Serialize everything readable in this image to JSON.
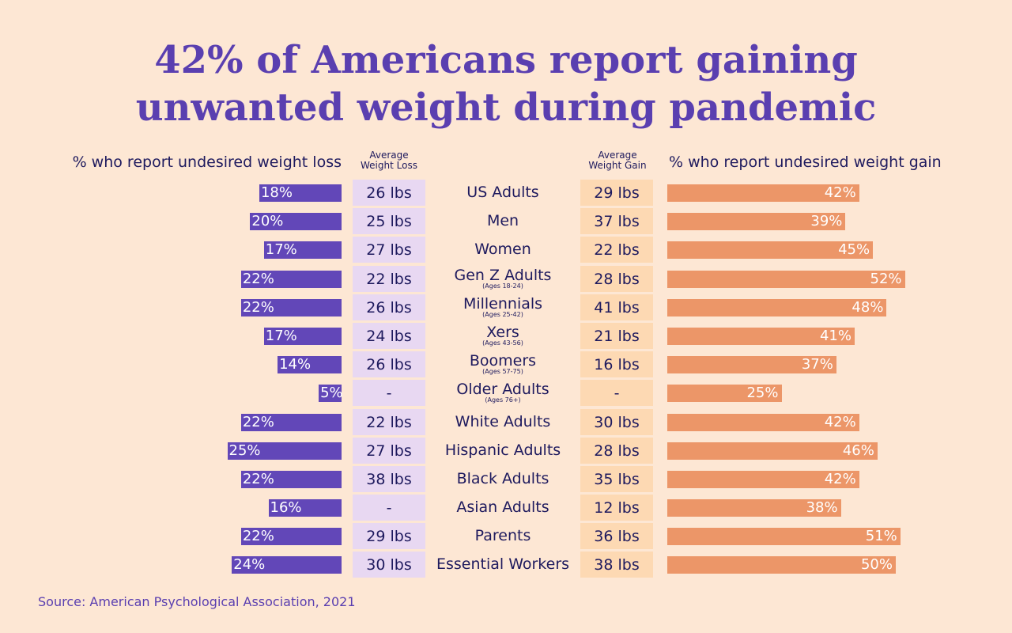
{
  "title_lines": [
    "42% of Americans report gaining",
    "unwanted weight during pandemic"
  ],
  "headers": {
    "loss_pct": "% who report undesired weight loss",
    "avg_loss_line1": "Average",
    "avg_loss_line2": "Weight Loss",
    "avg_gain_line1": "Average",
    "avg_gain_line2": "Weight Gain",
    "gain_pct": "% who report undesired weight gain"
  },
  "source": "Source: American Psychological Association, 2021",
  "colors": {
    "background": "#fde7d4",
    "loss_bar": "#6247b8",
    "gain_bar": "#ec9668",
    "loss_cell": "#e8d8f2",
    "gain_cell": "#fdd9b3",
    "title": "#5a3fb0"
  },
  "chart_data": {
    "type": "bar",
    "title": "42% of Americans report gaining unwanted weight during pandemic",
    "categories": [
      "US Adults",
      "Men",
      "Women",
      "Gen Z Adults",
      "Millennials",
      "Xers",
      "Boomers",
      "Older Adults",
      "White Adults",
      "Hispanic Adults",
      "Black Adults",
      "Asian Adults",
      "Parents",
      "Essential Workers"
    ],
    "category_notes": [
      "",
      "",
      "",
      "(Ages 18-24)",
      "(Ages 25-42)",
      "(Ages 43-56)",
      "(Ages 57-75)",
      "(Ages 76+)",
      "",
      "",
      "",
      "",
      "",
      ""
    ],
    "series": [
      {
        "name": "% who report undesired weight loss",
        "values": [
          18,
          20,
          17,
          22,
          22,
          17,
          14,
          5,
          22,
          25,
          22,
          16,
          22,
          24
        ],
        "labels": [
          "18%",
          "20%",
          "17%",
          "22%",
          "22%",
          "17%",
          "14%",
          "5%",
          "22%",
          "25%",
          "22%",
          "16%",
          "22%",
          "24%"
        ]
      },
      {
        "name": "% who report undesired weight gain",
        "values": [
          42,
          39,
          45,
          52,
          48,
          41,
          37,
          25,
          42,
          46,
          42,
          38,
          51,
          50
        ],
        "labels": [
          "42%",
          "39%",
          "45%",
          "52%",
          "48%",
          "41%",
          "37%",
          "25%",
          "42%",
          "46%",
          "42%",
          "38%",
          "51%",
          "50%"
        ]
      }
    ],
    "avg_weight_loss": [
      "26 lbs",
      "25 lbs",
      "27 lbs",
      "22 lbs",
      "26 lbs",
      "24 lbs",
      "26 lbs",
      "-",
      "22 lbs",
      "27 lbs",
      "38 lbs",
      "-",
      "29 lbs",
      "30 lbs"
    ],
    "avg_weight_gain": [
      "29 lbs",
      "37 lbs",
      "22 lbs",
      "28 lbs",
      "41 lbs",
      "21 lbs",
      "16 lbs",
      "-",
      "30 lbs",
      "28 lbs",
      "35 lbs",
      "12 lbs",
      "36 lbs",
      "38 lbs"
    ]
  }
}
